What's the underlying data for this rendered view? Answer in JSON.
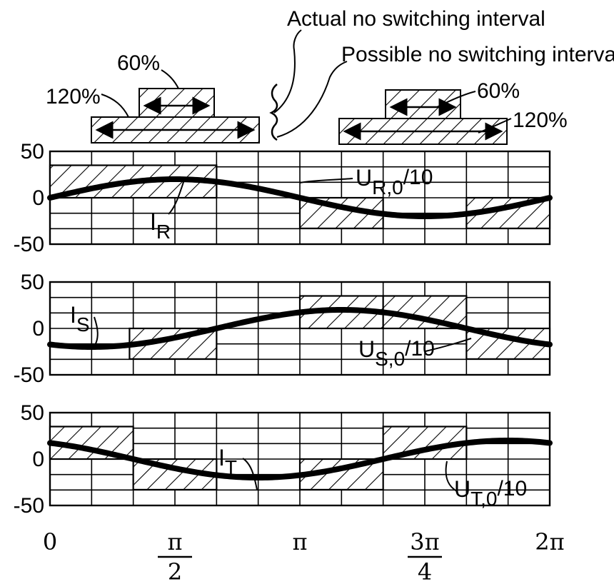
{
  "header": {
    "actual_label": "Actual no switching interval",
    "possible_label": "Possible no switching interval",
    "bar_left_short_label": "60%",
    "bar_left_long_label": "120%",
    "bar_right_short_label": "60%",
    "bar_right_long_label": "120%"
  },
  "chart_data": [
    {
      "type": "line",
      "panel": "R",
      "ylim": [
        -50,
        50
      ],
      "yticks": [
        "50",
        "0",
        "-50"
      ],
      "xlim": [
        0,
        6.2832
      ],
      "current_label": "I",
      "current_sub": "R",
      "voltage_label": "U",
      "voltage_sub": "R,0",
      "voltage_suffix": "/10",
      "series": [
        {
          "name": "I_R",
          "kind": "current",
          "amplitude": 20,
          "phase": 0,
          "x": [
            0,
            0.7854,
            1.5708,
            2.3562,
            3.1416,
            3.927,
            4.7124,
            5.4978,
            6.2832
          ],
          "y": [
            0,
            14.1,
            20,
            14.1,
            0,
            -14.1,
            -20,
            -14.1,
            0
          ]
        },
        {
          "name": "U_R,0/10",
          "kind": "voltage",
          "levels": [
            {
              "x0": 0,
              "x1": 2.0944,
              "y": 35
            },
            {
              "x0": 2.0944,
              "x1": 3.1416,
              "y": 0
            },
            {
              "x0": 3.1416,
              "x1": 4.1888,
              "y": -33
            },
            {
              "x0": 4.1888,
              "x1": 5.236,
              "y": 0
            },
            {
              "x0": 5.236,
              "x1": 6.2832,
              "y": -33
            }
          ]
        }
      ]
    },
    {
      "type": "line",
      "panel": "S",
      "ylim": [
        -50,
        50
      ],
      "yticks": [
        "50",
        "0",
        "-50"
      ],
      "xlim": [
        0,
        6.2832
      ],
      "current_label": "I",
      "current_sub": "S",
      "voltage_label": "U",
      "voltage_sub": "S,0",
      "voltage_suffix": "/10",
      "series": [
        {
          "name": "I_S",
          "kind": "current",
          "amplitude": 20,
          "phase": -2.0944,
          "x": [
            0,
            0.7854,
            1.5708,
            2.3562,
            3.1416,
            3.927,
            4.7124,
            5.4978,
            6.2832
          ],
          "y": [
            -17.3,
            -19.3,
            -10,
            5.2,
            17.3,
            19.3,
            10,
            -5.2,
            -17.3
          ]
        },
        {
          "name": "U_S,0/10",
          "kind": "voltage",
          "levels": [
            {
              "x0": 0,
              "x1": 1,
              "y": 0
            },
            {
              "x0": 1,
              "x1": 2.0944,
              "y": -33
            },
            {
              "x0": 2.0944,
              "x1": 3.1416,
              "y": 0
            },
            {
              "x0": 3.1416,
              "x1": 4.1888,
              "y": 35
            },
            {
              "x0": 4.1888,
              "x1": 5.236,
              "y": 35
            },
            {
              "x0": 5.236,
              "x1": 6.2832,
              "y": -33
            }
          ]
        }
      ]
    },
    {
      "type": "line",
      "panel": "T",
      "ylim": [
        -50,
        50
      ],
      "yticks": [
        "50",
        "0",
        "-50"
      ],
      "xlim": [
        0,
        6.2832
      ],
      "xticks": [
        "0",
        "π/2",
        "π",
        "3π/4",
        "2π"
      ],
      "current_label": "I",
      "current_sub": "T",
      "voltage_label": "U",
      "voltage_sub": "T,0",
      "voltage_suffix": "/10",
      "series": [
        {
          "name": "I_T",
          "kind": "current",
          "amplitude": 20,
          "phase": 2.0944,
          "x": [
            0,
            0.7854,
            1.5708,
            2.3562,
            3.1416,
            3.927,
            4.7124,
            5.4978,
            6.2832
          ],
          "y": [
            17.3,
            5.2,
            -10,
            -19.3,
            -17.3,
            -5.2,
            10,
            19.3,
            17.3
          ]
        },
        {
          "name": "U_T,0/10",
          "kind": "voltage",
          "levels": [
            {
              "x0": 0,
              "x1": 1.0472,
              "y": 35
            },
            {
              "x0": 1.0472,
              "x1": 2.0944,
              "y": -33
            },
            {
              "x0": 2.0944,
              "x1": 3.1416,
              "y": 0
            },
            {
              "x0": 3.1416,
              "x1": 4.1888,
              "y": -33
            },
            {
              "x0": 4.1888,
              "x1": 5.236,
              "y": 35
            },
            {
              "x0": 5.236,
              "x1": 6.2832,
              "y": 0
            }
          ]
        }
      ]
    }
  ]
}
